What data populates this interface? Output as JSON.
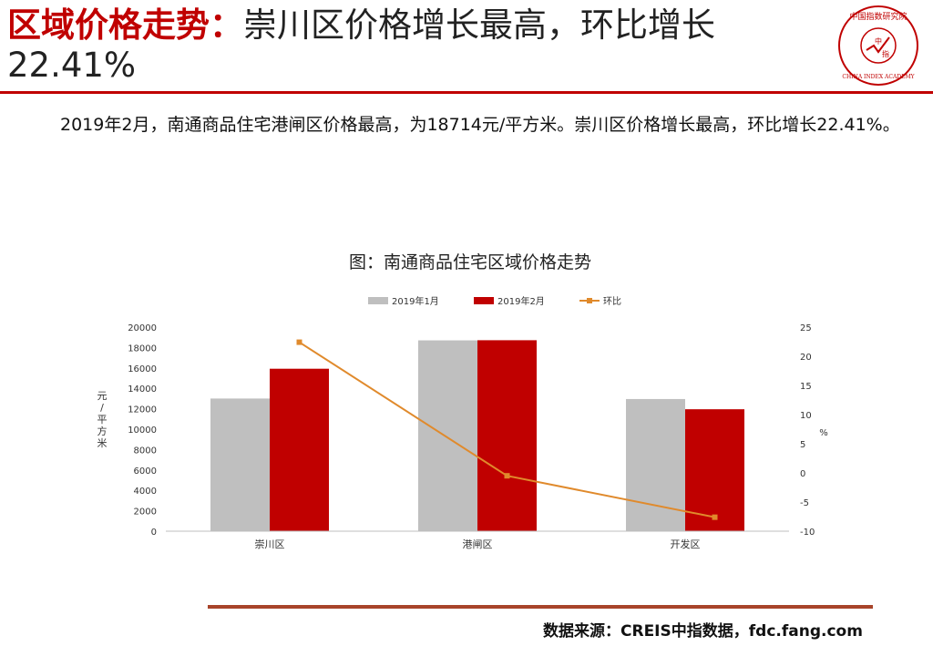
{
  "header": {
    "title_red": "区域价格走势：",
    "title_rest": "崇川区价格增长最高，环比增长22.41%",
    "logo": {
      "icon": "china-index-academy-seal",
      "top_text": "中国指数研究院",
      "bottom_text": "CHINA INDEX ACADEMY",
      "center_text": "中指"
    }
  },
  "summary": "2019年2月，南通商品住宅港闸区价格最高，为18714元/平方米。崇川区价格增长最高，环比增长22.41%。",
  "colors": {
    "accent": "#c00000",
    "jan": "#bfbfbf",
    "feb": "#c00000",
    "mom": "#e08a2c",
    "axis": "#bfbfbf",
    "bottom_line": "#a8442a"
  },
  "chart_data": {
    "type": "bar",
    "title": "图：南通商品住宅区域价格走势",
    "categories": [
      "崇川区",
      "港闸区",
      "开发区"
    ],
    "series": [
      {
        "name": "2019年1月",
        "type": "bar",
        "axis": "left",
        "values": [
          13000,
          18700,
          12950
        ]
      },
      {
        "name": "2019年2月",
        "type": "bar",
        "axis": "left",
        "values": [
          15920,
          18714,
          11950
        ]
      },
      {
        "name": "环比",
        "type": "line",
        "axis": "right",
        "values": [
          22.41,
          -0.5,
          -7.6
        ]
      }
    ],
    "ylabel": "元/平方米",
    "ylabel_right": "%",
    "ylim": [
      0,
      20000
    ],
    "ylim_right": [
      -10,
      25
    ],
    "yticks": [
      0,
      2000,
      4000,
      6000,
      8000,
      10000,
      12000,
      14000,
      16000,
      18000,
      20000
    ],
    "yticks_right": [
      -10,
      -5,
      0,
      5,
      10,
      15,
      20,
      25
    ],
    "legend_position": "top",
    "grid": false
  },
  "footer": {
    "source": "数据来源：CREIS中指数据，fdc.fang.com"
  }
}
